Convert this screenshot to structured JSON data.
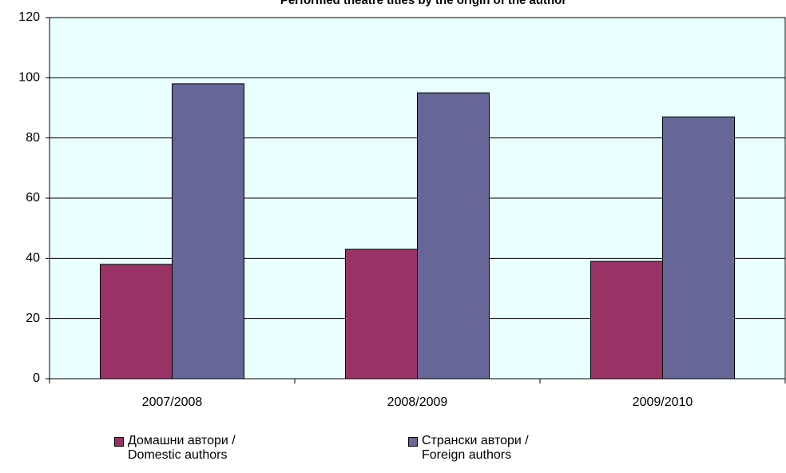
{
  "chart_data": {
    "type": "bar",
    "title": "Performed theatre titles by the origin of the author",
    "categories": [
      "2007/2008",
      "2008/2009",
      "2009/2010"
    ],
    "series": [
      {
        "name": "Домашни автори / Domestic authors",
        "color": "#993366",
        "values": [
          38,
          43,
          39
        ]
      },
      {
        "name": "Странски автори / Foreign authors",
        "color": "#666699",
        "values": [
          98,
          95,
          87
        ]
      }
    ],
    "ylim": [
      0,
      120
    ],
    "yticks": [
      0,
      20,
      40,
      60,
      80,
      100,
      120
    ],
    "grid": true,
    "plot_background": "#eaffff",
    "legend": "bottom"
  }
}
